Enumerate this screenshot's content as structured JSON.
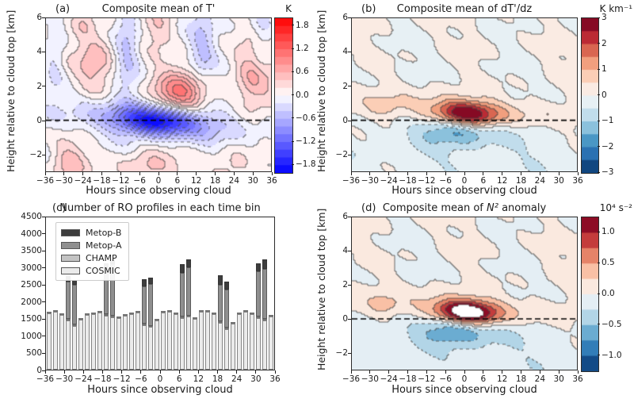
{
  "shared": {
    "xlabel": "Hours since observing cloud",
    "ylabel": "Height relative to cloud top [km]",
    "x_ticks": [
      -36,
      -30,
      -24,
      -18,
      -12,
      -6,
      0,
      6,
      12,
      18,
      24,
      30,
      36
    ],
    "y_ticks_km": [
      -2,
      0,
      2,
      4,
      6
    ],
    "zero_line_km": 0,
    "palettes": {
      "bwr_anchors": [
        "#0000ff",
        "#ffffff",
        "#ff0000"
      ],
      "rdbu_r_anchors": [
        "#053061",
        "#2166ac",
        "#4393c3",
        "#92c5de",
        "#d1e5f0",
        "#f7f7f7",
        "#fddbc7",
        "#f4a582",
        "#d6604d",
        "#b2182b",
        "#67001f"
      ]
    }
  },
  "chart_data": [
    {
      "id": "a",
      "type": "filled_contour",
      "letter": "(a)",
      "title": "Composite mean of T'",
      "cbar_label": "K",
      "x_range": [
        -36,
        36
      ],
      "y_range": [
        -3,
        6
      ],
      "levels": {
        "min": -2.0,
        "max": 2.0,
        "step": 0.2
      },
      "cbar_ticks": [
        1.8,
        1.2,
        0.6,
        0.0,
        -0.6,
        -1.2,
        -1.8
      ],
      "cbar_decimals": 1,
      "palette": "bwr",
      "over_white": false,
      "ripple_amp": 0.12,
      "description": "Cold anomaly (to -2 K) along cloud top, tilted downward with time; warm anomaly (~+1 K) above cloud top after hour 0; weak alternating anomalies elsewhere.",
      "features": [
        {
          "a": -1.75,
          "x": 0,
          "z": -0.05,
          "sx": 8.5,
          "sz": 0.55,
          "slope": -0.01
        },
        {
          "a": -0.45,
          "x": 0,
          "z": 0.05,
          "sx": 26,
          "sz": 0.85,
          "slope": -0.016
        },
        {
          "a": 1.05,
          "x": 7,
          "z": 1.5,
          "sx": 6.5,
          "sz": 0.95,
          "slope": 0
        },
        {
          "a": 0.55,
          "x": -20,
          "z": 3.5,
          "sx": 4.5,
          "sz": 1.4,
          "slope": 0
        },
        {
          "a": 0.3,
          "x": -24,
          "z": 5.8,
          "sx": 2.5,
          "sz": 0.7,
          "slope": 0
        },
        {
          "a": 0.6,
          "x": 31,
          "z": 2.4,
          "sx": 4.5,
          "sz": 1.6,
          "slope": 0
        },
        {
          "a": 0.5,
          "x": -29,
          "z": -2.6,
          "sx": 4.0,
          "sz": 0.9,
          "slope": 0
        },
        {
          "a": 0.5,
          "x": -4,
          "z": -2.9,
          "sx": 6.0,
          "sz": 0.9,
          "slope": 0
        },
        {
          "a": 0.4,
          "x": 23,
          "z": -2.9,
          "sx": 5.0,
          "sz": 0.9,
          "slope": 0
        },
        {
          "a": -0.45,
          "x": -10,
          "z": 4.5,
          "sx": 2.8,
          "sz": 2.2,
          "slope": 0
        },
        {
          "a": -0.4,
          "x": 14,
          "z": 4.3,
          "sx": 2.8,
          "sz": 2.0,
          "slope": 0
        },
        {
          "a": -0.33,
          "x": 33,
          "z": 4.6,
          "sx": 2.4,
          "sz": 1.8,
          "slope": 0
        },
        {
          "a": -0.3,
          "x": -33,
          "z": 4.2,
          "sx": 2.2,
          "sz": 1.8,
          "slope": 0
        },
        {
          "a": 0.35,
          "x": 0,
          "z": 5.6,
          "sx": 3.5,
          "sz": 0.9,
          "slope": 0
        }
      ]
    },
    {
      "id": "b",
      "type": "filled_contour",
      "letter": "(b)",
      "title": "Composite mean of dT'/dz",
      "cbar_label": "K km⁻¹",
      "x_range": [
        -36,
        36
      ],
      "y_range": [
        -3,
        6
      ],
      "levels": {
        "min": -3.0,
        "max": 3.0,
        "step": 0.5
      },
      "cbar_ticks": [
        3,
        2,
        1,
        0,
        -1,
        -2,
        -3
      ],
      "cbar_decimals": 0,
      "palette": "rdbu_r",
      "over_white": false,
      "ripple_amp": 0.21,
      "description": "Strong stable layer (to +3 K/km) just above cloud top, descending with time; destabilized layer (to -1.5 K/km) just below; weak negative anomaly through lower levels.",
      "features": [
        {
          "a": 2.6,
          "x": 1,
          "z": 0.35,
          "sx": 6.5,
          "sz": 0.5,
          "slope": -0.012
        },
        {
          "a": 0.9,
          "x": 0,
          "z": 0.55,
          "sx": 22,
          "sz": 0.6,
          "slope": -0.013
        },
        {
          "a": 0.55,
          "x": -26,
          "z": 0.85,
          "sx": 3.0,
          "sz": 0.35,
          "slope": 0
        },
        {
          "a": -1.15,
          "x": -2,
          "z": -0.62,
          "sx": 7.5,
          "sz": 0.5,
          "slope": -0.005
        },
        {
          "a": -0.45,
          "x": -1,
          "z": -0.7,
          "sx": 15,
          "sz": 0.75,
          "slope": -0.005
        },
        {
          "a": -0.33,
          "x": 0,
          "z": -2.3,
          "sx": 40,
          "sz": 1.5,
          "slope": 0
        }
      ]
    },
    {
      "id": "c",
      "type": "stacked_bar",
      "letter": "(c)",
      "title": "Number of RO profiles in each time bin",
      "x_range": [
        -36,
        36
      ],
      "y_range": [
        0,
        4500
      ],
      "y_ticks": [
        0,
        500,
        1000,
        1500,
        2000,
        2500,
        3000,
        3500,
        4000,
        4500
      ],
      "series_order_bottom_up": [
        "COSMIC",
        "CHAMP",
        "Metop-A",
        "Metop-B"
      ],
      "legend": [
        "Metop-B",
        "Metop-A",
        "CHAMP",
        "COSMIC"
      ],
      "colors": {
        "Metop-B": "#3d3d3d",
        "Metop-A": "#8f8f8f",
        "CHAMP": "#c3c3c3",
        "COSMIC": "#ebebeb"
      },
      "bin_hours": [
        -35,
        -33,
        -31,
        -29,
        -27,
        -25,
        -23,
        -21,
        -19,
        -17,
        -15,
        -13,
        -11,
        -9,
        -7,
        -5,
        -3,
        -1,
        1,
        3,
        5,
        7,
        9,
        11,
        13,
        15,
        17,
        19,
        21,
        23,
        25,
        27,
        29,
        31,
        33,
        35
      ],
      "values": {
        "COSMIC": [
          1660,
          1705,
          1610,
          1450,
          1300,
          1470,
          1620,
          1650,
          1680,
          1600,
          1550,
          1520,
          1605,
          1635,
          1680,
          1320,
          1260,
          1450,
          1690,
          1700,
          1650,
          1520,
          1560,
          1510,
          1705,
          1705,
          1650,
          1380,
          1200,
          1350,
          1630,
          1720,
          1630,
          1520,
          1460,
          1570
        ],
        "CHAMP": [
          40,
          40,
          40,
          40,
          40,
          40,
          40,
          40,
          40,
          40,
          40,
          40,
          40,
          40,
          40,
          40,
          40,
          40,
          40,
          40,
          40,
          40,
          40,
          40,
          40,
          40,
          40,
          40,
          40,
          40,
          40,
          40,
          40,
          40,
          40,
          40
        ],
        "Metop-A": [
          0,
          0,
          0,
          1120,
          1160,
          0,
          0,
          0,
          0,
          1240,
          1520,
          0,
          0,
          0,
          0,
          1110,
          1230,
          0,
          0,
          0,
          0,
          1290,
          1420,
          0,
          0,
          0,
          0,
          1080,
          1130,
          0,
          0,
          0,
          0,
          1350,
          1470,
          0
        ],
        "Metop-B": [
          0,
          0,
          0,
          150,
          150,
          0,
          0,
          0,
          0,
          270,
          180,
          0,
          0,
          0,
          0,
          200,
          190,
          0,
          0,
          0,
          0,
          270,
          250,
          0,
          0,
          0,
          0,
          280,
          230,
          0,
          0,
          0,
          0,
          240,
          280,
          0
        ]
      }
    },
    {
      "id": "d",
      "type": "filled_contour",
      "letter": "(d)",
      "title": "Composite mean of N² anomaly",
      "title_pre": "Composite mean of ",
      "title_var": "N²",
      "title_post": " anomaly",
      "cbar_label": "10⁴ s⁻²",
      "x_range": [
        -36,
        36
      ],
      "y_range": [
        -3,
        6
      ],
      "levels": {
        "min": -1.25,
        "max": 1.25,
        "step": 0.25
      },
      "cbar_ticks": [
        1.0,
        0.5,
        0.0,
        -0.5,
        -1.0
      ],
      "cbar_decimals": 1,
      "palette": "rdbu_r",
      "over_white": true,
      "ripple_amp": 0.085,
      "description": "Positive static-stability anomaly (exceeding +1.25, shown white at core) just above cloud top, descending with time; negative anomaly (to -1) just below; weak negative anomaly at lower levels.",
      "features": [
        {
          "a": 1.55,
          "x": 1,
          "z": 0.35,
          "sx": 6.5,
          "sz": 0.5,
          "slope": -0.012
        },
        {
          "a": 0.34,
          "x": 0,
          "z": 0.55,
          "sx": 22,
          "sz": 0.6,
          "slope": -0.013
        },
        {
          "a": 0.28,
          "x": -26,
          "z": 0.85,
          "sx": 3.0,
          "sz": 0.35,
          "slope": 0
        },
        {
          "a": -0.52,
          "x": -2,
          "z": -0.62,
          "sx": 7.5,
          "sz": 0.55,
          "slope": -0.005
        },
        {
          "a": -0.22,
          "x": -1,
          "z": -0.7,
          "sx": 15,
          "sz": 0.75,
          "slope": -0.005
        },
        {
          "a": -0.16,
          "x": 0,
          "z": -2.3,
          "sx": 40,
          "sz": 1.6,
          "slope": 0
        }
      ]
    }
  ]
}
